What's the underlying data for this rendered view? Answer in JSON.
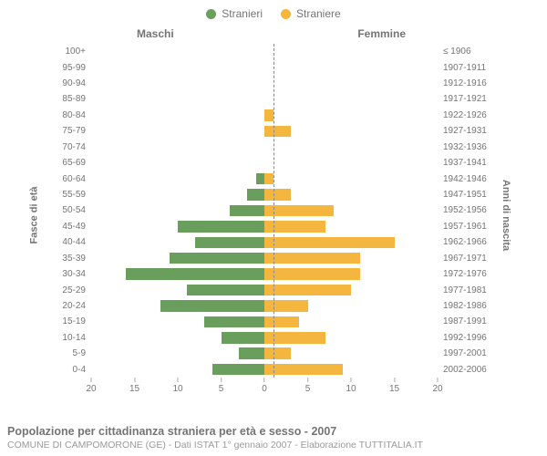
{
  "legend": {
    "male": {
      "label": "Stranieri",
      "color": "#6a9e5c"
    },
    "female": {
      "label": "Straniere",
      "color": "#f4b63f"
    }
  },
  "headers": {
    "left": "Maschi",
    "right": "Femmine"
  },
  "axis_titles": {
    "left": "Fasce di età",
    "right": "Anni di nascita"
  },
  "chart": {
    "type": "population-pyramid",
    "xmax": 20,
    "xticks": [
      20,
      15,
      10,
      5,
      0,
      5,
      10,
      15,
      20
    ],
    "background_color": "#ffffff",
    "centerline_color": "#888888",
    "rows": [
      {
        "age": "100+",
        "birth": "≤ 1906",
        "m": 0,
        "f": 0
      },
      {
        "age": "95-99",
        "birth": "1907-1911",
        "m": 0,
        "f": 0
      },
      {
        "age": "90-94",
        "birth": "1912-1916",
        "m": 0,
        "f": 0
      },
      {
        "age": "85-89",
        "birth": "1917-1921",
        "m": 0,
        "f": 0
      },
      {
        "age": "80-84",
        "birth": "1922-1926",
        "m": 0,
        "f": 1
      },
      {
        "age": "75-79",
        "birth": "1927-1931",
        "m": 0,
        "f": 3
      },
      {
        "age": "70-74",
        "birth": "1932-1936",
        "m": 0,
        "f": 0
      },
      {
        "age": "65-69",
        "birth": "1937-1941",
        "m": 0,
        "f": 0
      },
      {
        "age": "60-64",
        "birth": "1942-1946",
        "m": 1,
        "f": 1
      },
      {
        "age": "55-59",
        "birth": "1947-1951",
        "m": 2,
        "f": 3
      },
      {
        "age": "50-54",
        "birth": "1952-1956",
        "m": 4,
        "f": 8
      },
      {
        "age": "45-49",
        "birth": "1957-1961",
        "m": 10,
        "f": 7
      },
      {
        "age": "40-44",
        "birth": "1962-1966",
        "m": 8,
        "f": 15
      },
      {
        "age": "35-39",
        "birth": "1967-1971",
        "m": 11,
        "f": 11
      },
      {
        "age": "30-34",
        "birth": "1972-1976",
        "m": 16,
        "f": 11
      },
      {
        "age": "25-29",
        "birth": "1977-1981",
        "m": 9,
        "f": 10
      },
      {
        "age": "20-24",
        "birth": "1982-1986",
        "m": 12,
        "f": 5
      },
      {
        "age": "15-19",
        "birth": "1987-1991",
        "m": 7,
        "f": 4
      },
      {
        "age": "10-14",
        "birth": "1992-1996",
        "m": 5,
        "f": 7
      },
      {
        "age": "5-9",
        "birth": "1997-2001",
        "m": 3,
        "f": 3
      },
      {
        "age": "0-4",
        "birth": "2002-2006",
        "m": 6,
        "f": 9
      }
    ]
  },
  "footer": {
    "title": "Popolazione per cittadinanza straniera per età e sesso - 2007",
    "sub": "COMUNE DI CAMPOMORONE (GE) - Dati ISTAT 1° gennaio 2007 - Elaborazione TUTTITALIA.IT"
  }
}
